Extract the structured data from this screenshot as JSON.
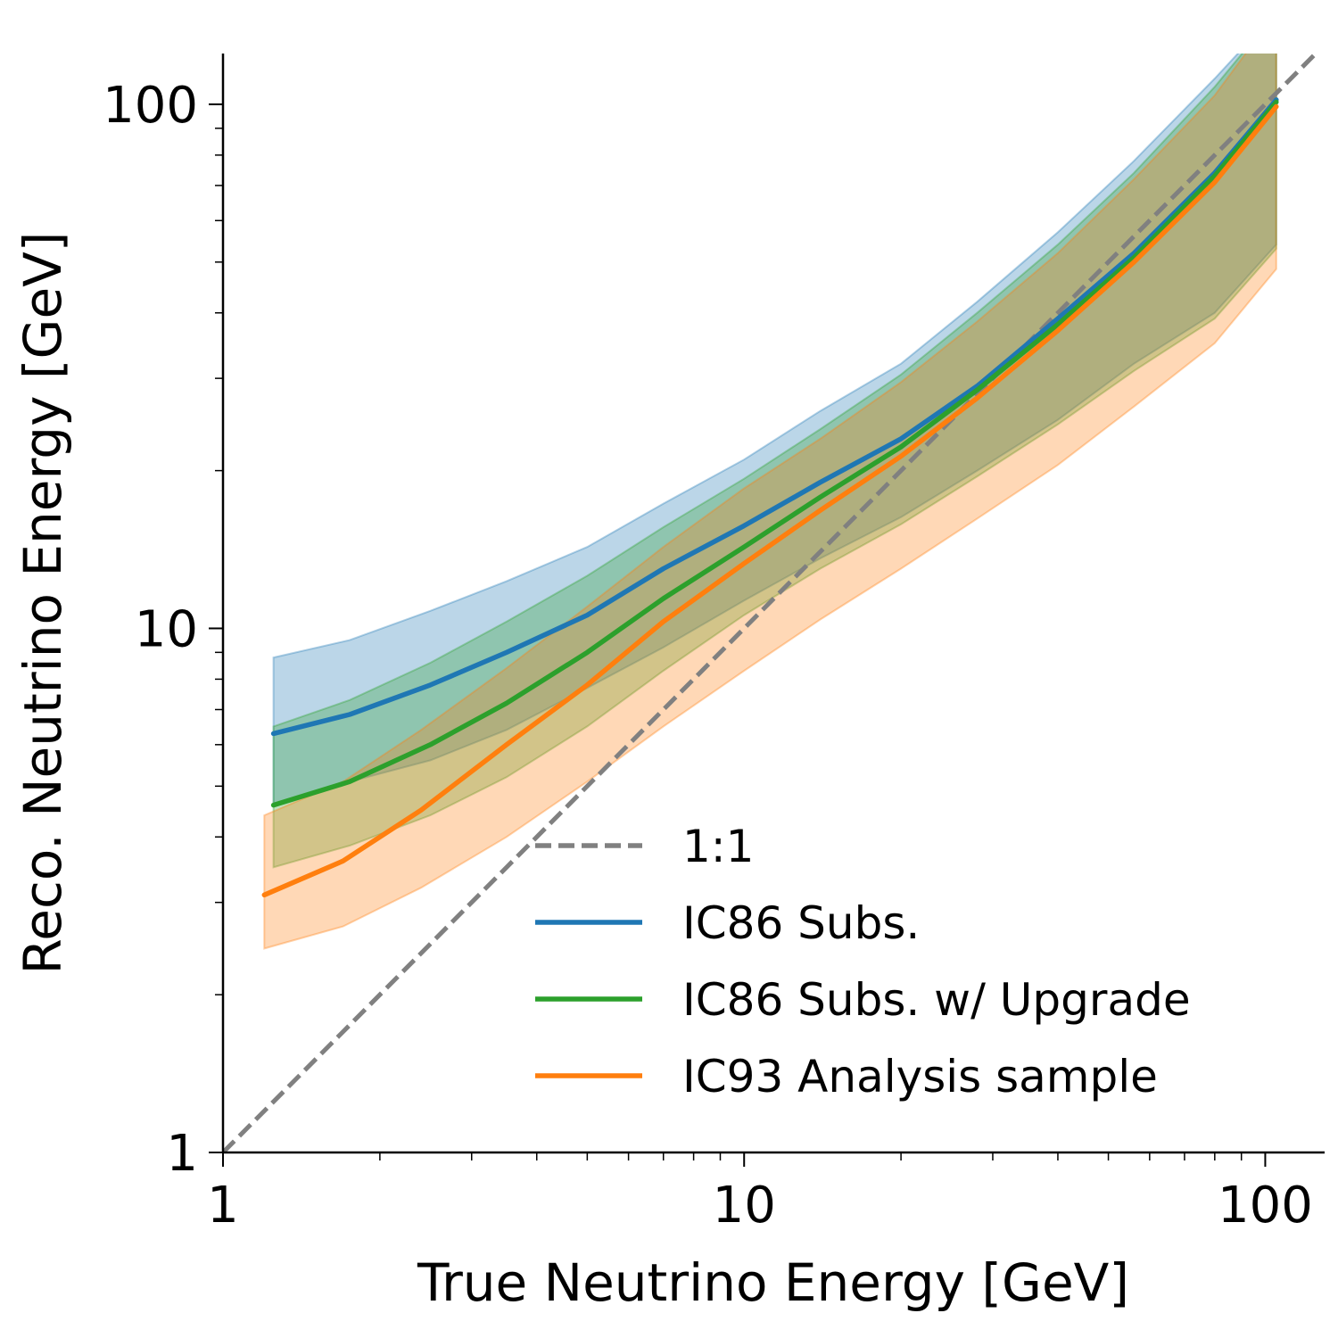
{
  "chart_data": {
    "type": "line",
    "xlabel": "True Neutrino Energy [GeV]",
    "ylabel": "Reco. Neutrino Energy [GeV]",
    "xscale": "log",
    "yscale": "log",
    "xlim": [
      1,
      130
    ],
    "ylim": [
      1,
      125
    ],
    "xticks": [
      1,
      10,
      100
    ],
    "xtick_labels": [
      "1",
      "10",
      "100"
    ],
    "yticks": [
      1,
      10,
      100
    ],
    "ytick_labels": [
      "1",
      "10",
      "100"
    ],
    "grid": false,
    "legend_position": "lower-right",
    "reference_line": {
      "name": "1:1",
      "color": "#808080",
      "style": "dashed"
    },
    "series": [
      {
        "name": "IC86 Subs.",
        "color": "#1f77b4",
        "x": [
          1.25,
          1.75,
          2.5,
          3.5,
          5,
          7,
          10,
          14,
          20,
          28,
          40,
          56,
          80,
          105
        ],
        "median": [
          6.3,
          6.85,
          7.8,
          9.0,
          10.6,
          13.0,
          15.7,
          19.0,
          23.0,
          29.0,
          39.0,
          52.0,
          74.0,
          102.0
        ],
        "upper": [
          8.8,
          9.5,
          10.8,
          12.3,
          14.3,
          17.3,
          21.0,
          26.0,
          32.0,
          42.0,
          57.0,
          78.0,
          112.0,
          150.0
        ],
        "lower": [
          4.6,
          5.1,
          5.6,
          6.4,
          7.7,
          9.2,
          11.3,
          13.6,
          16.3,
          20.0,
          25.0,
          32.0,
          40.0,
          54.0
        ]
      },
      {
        "name": "IC86 Subs. w/ Upgrade",
        "color": "#2ca02c",
        "x": [
          1.25,
          1.75,
          2.5,
          3.5,
          5,
          7,
          10,
          14,
          20,
          28,
          40,
          56,
          80,
          105
        ],
        "median": [
          4.6,
          5.1,
          6.0,
          7.2,
          9.0,
          11.4,
          14.3,
          17.8,
          22.2,
          28.5,
          38.0,
          51.0,
          73.0,
          101.0
        ],
        "upper": [
          6.5,
          7.3,
          8.6,
          10.3,
          12.6,
          15.6,
          19.3,
          24.0,
          30.5,
          40.0,
          54.0,
          74.0,
          108.0,
          150.0
        ],
        "lower": [
          3.5,
          3.85,
          4.4,
          5.2,
          6.5,
          8.3,
          10.6,
          13.0,
          15.8,
          19.5,
          24.5,
          31.0,
          39.0,
          53.0
        ]
      },
      {
        "name": "IC93 Analysis sample",
        "color": "#ff7f0e",
        "x": [
          1.2,
          1.7,
          2.4,
          3.5,
          5,
          7,
          10,
          14,
          20,
          28,
          40,
          56,
          80,
          105
        ],
        "median": [
          3.1,
          3.6,
          4.5,
          6.0,
          7.8,
          10.3,
          13.3,
          16.8,
          21.3,
          27.5,
          37.0,
          50.0,
          71.0,
          99.0
        ],
        "upper": [
          4.4,
          5.1,
          6.4,
          8.4,
          11.0,
          14.3,
          18.5,
          23.0,
          29.5,
          38.5,
          52.0,
          72.0,
          104.0,
          150.0
        ],
        "lower": [
          2.45,
          2.7,
          3.2,
          4.0,
          5.1,
          6.5,
          8.3,
          10.4,
          13.0,
          16.2,
          20.5,
          26.5,
          35.0,
          48.5
        ]
      }
    ]
  }
}
